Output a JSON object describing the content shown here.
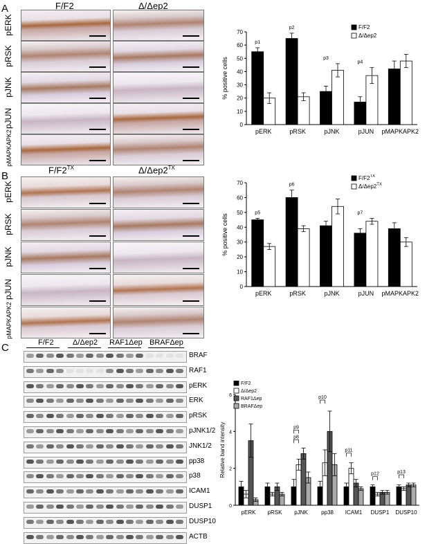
{
  "panel_A": {
    "letter": "A",
    "col_labels": [
      "F/F2",
      "Δ/Δep2"
    ],
    "row_labels": [
      "pERK",
      "pRSK",
      "pJNK",
      "pJUN",
      "pMAPKAPK2"
    ]
  },
  "panel_B": {
    "letter": "B",
    "col_labels": [
      "F/F2",
      "TX",
      "Δ/Δep2",
      "TX"
    ],
    "row_labels": [
      "pERK",
      "pRSK",
      "pJNK",
      "pJUN",
      "pMAPKAPK2"
    ]
  },
  "panel_C": {
    "letter": "C",
    "group_labels": [
      "F/F2",
      "Δ/Δep2",
      "RAF1Δep",
      "BRAFΔep"
    ],
    "blot_labels": [
      "BRAF",
      "RAF1",
      "pERK",
      "ERK",
      "pRSK",
      "pJNK1/2",
      "JNK1/2",
      "pp38",
      "p38",
      "ICAM1",
      "DUSP1",
      "DUSP10",
      "ACTB"
    ]
  },
  "chart_data": [
    {
      "type": "bar",
      "categories": [
        "pERK",
        "pRSK",
        "pJNK",
        "pJUN",
        "pMAPKAPK2"
      ],
      "series": [
        {
          "name": "F/F2",
          "values": [
            55,
            65,
            25,
            17,
            42
          ],
          "errors": [
            3,
            4,
            4,
            4,
            6
          ],
          "color": "#000000"
        },
        {
          "name": "Δ/Δep2",
          "values": [
            20,
            21,
            41,
            37,
            48
          ],
          "errors": [
            4,
            3,
            5,
            6,
            5
          ],
          "color": "#ffffff"
        }
      ],
      "ylabel": "% positive cells",
      "ylim": [
        0,
        70
      ],
      "yticks": [
        0,
        10,
        20,
        30,
        40,
        50,
        60,
        70
      ],
      "annotations": [
        "p1",
        "p2",
        "p3",
        "p4"
      ],
      "legend_position": "top-right"
    },
    {
      "type": "bar",
      "categories": [
        "pERK",
        "pRSK",
        "pJNK",
        "pJUN",
        "pMAPKAPK2"
      ],
      "series": [
        {
          "name": "F/F2",
          "sup": "TX",
          "values": [
            45,
            60,
            41,
            36,
            39
          ],
          "errors": [
            1,
            5,
            3,
            3,
            4
          ],
          "color": "#000000"
        },
        {
          "name": "Δ/Δep2",
          "sup": "TX",
          "values": [
            27,
            39,
            54,
            44,
            30
          ],
          "errors": [
            2,
            2,
            5,
            2,
            3
          ],
          "color": "#ffffff"
        }
      ],
      "ylabel": "% positive cells",
      "ylim": [
        0,
        70
      ],
      "yticks": [
        0,
        10,
        20,
        30,
        40,
        50,
        60,
        70
      ],
      "annotations": [
        "p5",
        "p6",
        "p7"
      ],
      "legend_position": "top-right"
    },
    {
      "type": "bar",
      "categories": [
        "pERK",
        "pRSK",
        "pJNK",
        "pp38",
        "ICAM1",
        "DUSP1",
        "DUSP10"
      ],
      "series": [
        {
          "name": "F/F2",
          "values": [
            1.0,
            1.0,
            1.0,
            1.0,
            1.0,
            1.0,
            1.0
          ],
          "errors": [
            0.3,
            0.2,
            0.4,
            0.3,
            0.2,
            0.1,
            0.1
          ],
          "color": "#000000"
        },
        {
          "name": "Δ/Δep2",
          "values": [
            0.6,
            0.6,
            2.2,
            2.3,
            2.0,
            0.6,
            0.9
          ],
          "errors": [
            0.2,
            0.1,
            0.3,
            0.7,
            0.3,
            0.1,
            0.1
          ],
          "color": "#ffffff"
        },
        {
          "name": "RAF1Δep",
          "values": [
            3.5,
            1.0,
            2.8,
            4.0,
            1.2,
            0.7,
            1.1
          ],
          "errors": [
            0.9,
            0.2,
            0.3,
            1.1,
            0.2,
            0.1,
            0.1
          ],
          "color": "#555555"
        },
        {
          "name": "BRAFΔep",
          "values": [
            0.3,
            0.6,
            1.5,
            2.2,
            0.9,
            0.7,
            1.1
          ],
          "errors": [
            0.1,
            0.1,
            0.3,
            0.6,
            0.1,
            0.1,
            0.1
          ],
          "color": "#aaaaaa"
        }
      ],
      "ylabel": "Relative band intensity",
      "ylim": [
        0,
        6
      ],
      "yticks": [
        0,
        2,
        4,
        6
      ],
      "annotations": [
        "p8",
        "p9",
        "p10",
        "p11",
        "p12",
        "p13"
      ],
      "legend_position": "top-left"
    }
  ]
}
